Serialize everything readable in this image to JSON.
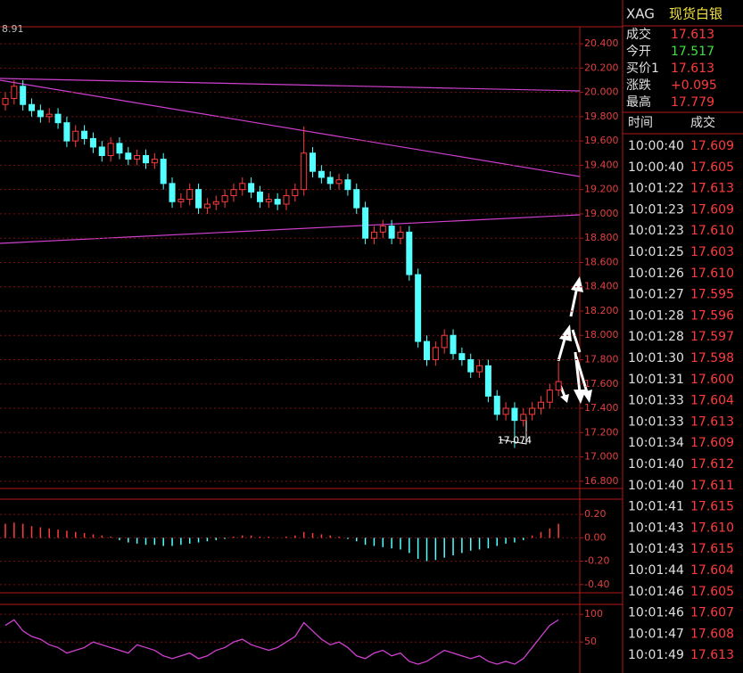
{
  "header": {
    "symbol": "XAG",
    "name": "现货白银"
  },
  "quote": [
    {
      "label": "成交",
      "value": "17.613",
      "color": "#ff3c3c"
    },
    {
      "label": "今开",
      "value": "17.517",
      "color": "#40e040"
    },
    {
      "label": "买价1",
      "value": "17.613",
      "color": "#ff3c3c"
    },
    {
      "label": "涨跌",
      "value": "+0.095",
      "color": "#ff3c3c"
    },
    {
      "label": "最高",
      "value": "17.779",
      "color": "#ff3c3c"
    }
  ],
  "trades": {
    "columns": [
      "时间",
      "成交"
    ],
    "color": "#ff3c3c",
    "rows": [
      [
        "10:00:40",
        "17.609"
      ],
      [
        "10:00:40",
        "17.605"
      ],
      [
        "10:01:22",
        "17.613"
      ],
      [
        "10:01:23",
        "17.609"
      ],
      [
        "10:01:23",
        "17.610"
      ],
      [
        "10:01:25",
        "17.603"
      ],
      [
        "10:01:26",
        "17.610"
      ],
      [
        "10:01:27",
        "17.595"
      ],
      [
        "10:01:28",
        "17.596"
      ],
      [
        "10:01:28",
        "17.597"
      ],
      [
        "10:01:30",
        "17.598"
      ],
      [
        "10:01:31",
        "17.600"
      ],
      [
        "10:01:33",
        "17.604"
      ],
      [
        "10:01:33",
        "17.613"
      ],
      [
        "10:01:34",
        "17.609"
      ],
      [
        "10:01:40",
        "17.612"
      ],
      [
        "10:01:40",
        "17.611"
      ],
      [
        "10:01:41",
        "17.615"
      ],
      [
        "10:01:43",
        "17.610"
      ],
      [
        "10:01:43",
        "17.615"
      ],
      [
        "10:01:44",
        "17.604"
      ],
      [
        "10:01:46",
        "17.605"
      ],
      [
        "10:01:46",
        "17.607"
      ],
      [
        "10:01:47",
        "17.608"
      ],
      [
        "10:01:49",
        "17.613"
      ]
    ]
  },
  "chart_data": [
    {
      "type": "candlestick",
      "corner_label": "8.91",
      "annotation": "17.074",
      "up_color": "#ff3c3c",
      "down_color": "#54ffff",
      "grid": true,
      "ylim": [
        16.74,
        20.54
      ],
      "yticks": [
        {
          "value": 20.4,
          "label": "20.400"
        },
        {
          "value": 20.2,
          "label": "20.200"
        },
        {
          "value": 20.0,
          "label": "20.000"
        },
        {
          "value": 19.8,
          "label": "19.800"
        },
        {
          "value": 19.6,
          "label": "19.600"
        },
        {
          "value": 19.4,
          "label": "19.400"
        },
        {
          "value": 19.2,
          "label": "19.200"
        },
        {
          "value": 19.0,
          "label": "19.000"
        },
        {
          "value": 18.8,
          "label": "18.800"
        },
        {
          "value": 18.6,
          "label": "18.600"
        },
        {
          "value": 18.4,
          "label": "18.400"
        },
        {
          "value": 18.2,
          "label": "18.200"
        },
        {
          "value": 18.0,
          "label": "18.000"
        },
        {
          "value": 17.8,
          "label": "17.800"
        },
        {
          "value": 17.6,
          "label": "17.600"
        },
        {
          "value": 17.4,
          "label": "17.400"
        },
        {
          "value": 17.2,
          "label": "17.200"
        },
        {
          "value": 17.0,
          "label": "17.000"
        },
        {
          "value": 16.8,
          "label": "16.800"
        }
      ],
      "open": [
        19.9,
        19.95,
        20.05,
        19.9,
        19.85,
        19.8,
        19.82,
        19.75,
        19.6,
        19.68,
        19.62,
        19.55,
        19.48,
        19.58,
        19.5,
        19.45,
        19.48,
        19.42,
        19.45,
        19.25,
        19.1,
        19.12,
        19.2,
        19.05,
        19.08,
        19.1,
        19.15,
        19.2,
        19.25,
        19.18,
        19.1,
        19.12,
        19.08,
        19.15,
        19.2,
        19.5,
        19.35,
        19.3,
        19.25,
        19.28,
        19.2,
        19.05,
        18.8,
        18.85,
        18.9,
        18.8,
        18.85,
        18.5,
        17.95,
        17.8,
        17.9,
        18.0,
        17.85,
        17.8,
        17.7,
        17.75,
        17.5,
        17.35,
        17.4,
        17.3,
        17.35,
        17.4,
        17.45,
        17.55
      ],
      "high": [
        20.0,
        20.1,
        20.1,
        19.95,
        19.9,
        19.87,
        19.87,
        19.8,
        19.73,
        19.73,
        19.67,
        19.6,
        19.63,
        19.63,
        19.55,
        19.53,
        19.53,
        19.5,
        19.5,
        19.3,
        19.17,
        19.25,
        19.25,
        19.13,
        19.15,
        19.2,
        19.25,
        19.3,
        19.3,
        19.23,
        19.17,
        19.17,
        19.2,
        19.25,
        19.72,
        19.55,
        19.4,
        19.35,
        19.33,
        19.33,
        19.25,
        19.1,
        18.9,
        18.95,
        18.95,
        18.9,
        18.9,
        18.55,
        18.0,
        17.95,
        18.05,
        18.05,
        17.9,
        17.85,
        17.8,
        17.8,
        17.55,
        17.45,
        17.45,
        17.4,
        17.45,
        17.5,
        17.6,
        17.78
      ],
      "low": [
        19.85,
        19.9,
        19.85,
        19.8,
        19.75,
        19.75,
        19.7,
        19.55,
        19.55,
        19.57,
        19.5,
        19.43,
        19.43,
        19.45,
        19.4,
        19.4,
        19.37,
        19.37,
        19.2,
        19.05,
        19.05,
        19.07,
        19.0,
        19.0,
        19.03,
        19.05,
        19.1,
        19.15,
        19.13,
        19.05,
        19.05,
        19.03,
        19.03,
        19.1,
        19.15,
        19.3,
        19.25,
        19.2,
        19.2,
        19.15,
        19.0,
        18.75,
        18.75,
        18.8,
        18.75,
        18.75,
        18.45,
        17.9,
        17.75,
        17.75,
        17.85,
        17.8,
        17.75,
        17.65,
        17.65,
        17.45,
        17.3,
        17.3,
        17.074,
        17.25,
        17.3,
        17.35,
        17.4,
        17.5
      ],
      "close": [
        19.95,
        20.05,
        19.9,
        19.85,
        19.8,
        19.82,
        19.75,
        19.6,
        19.68,
        19.62,
        19.55,
        19.48,
        19.58,
        19.5,
        19.45,
        19.48,
        19.42,
        19.45,
        19.25,
        19.1,
        19.12,
        19.2,
        19.05,
        19.08,
        19.1,
        19.15,
        19.2,
        19.25,
        19.18,
        19.1,
        19.12,
        19.08,
        19.15,
        19.2,
        19.5,
        19.35,
        19.3,
        19.25,
        19.28,
        19.2,
        19.05,
        18.8,
        18.85,
        18.9,
        18.8,
        18.85,
        18.5,
        17.95,
        17.8,
        17.9,
        18.0,
        17.85,
        17.8,
        17.7,
        17.75,
        17.5,
        17.35,
        17.4,
        17.3,
        17.35,
        17.4,
        17.45,
        17.55,
        17.62
      ]
    },
    {
      "type": "histogram",
      "up_color": "#ff3c3c",
      "down_color": "#54ffff",
      "ylim": [
        -0.47,
        0.33
      ],
      "yticks": [
        {
          "value": 0.2,
          "label": "0.20"
        },
        {
          "value": 0,
          "label": "0.00"
        },
        {
          "value": -0.2,
          "label": "-0.20"
        },
        {
          "value": -0.4,
          "label": "-0.40"
        }
      ],
      "values": [
        0.12,
        0.13,
        0.12,
        0.1,
        0.09,
        0.08,
        0.07,
        0.06,
        0.05,
        0.04,
        0.03,
        0.02,
        0.01,
        -0.02,
        -0.04,
        -0.05,
        -0.06,
        -0.06,
        -0.07,
        -0.07,
        -0.06,
        -0.05,
        -0.04,
        -0.03,
        -0.02,
        -0.01,
        0.01,
        0.02,
        0.02,
        0.01,
        0.01,
        0.0,
        0.01,
        0.02,
        0.05,
        0.04,
        0.03,
        0.02,
        0.01,
        -0.01,
        -0.03,
        -0.06,
        -0.07,
        -0.08,
        -0.09,
        -0.1,
        -0.13,
        -0.18,
        -0.2,
        -0.19,
        -0.17,
        -0.15,
        -0.13,
        -0.11,
        -0.1,
        -0.09,
        -0.07,
        -0.05,
        -0.04,
        -0.02,
        0.02,
        0.05,
        0.08,
        0.12
      ]
    },
    {
      "type": "line",
      "ylim": [
        -6,
        118
      ],
      "yticks": [
        100,
        50
      ],
      "series": [
        {
          "color": "#d040d0",
          "values": [
            80,
            90,
            70,
            60,
            55,
            45,
            40,
            30,
            35,
            40,
            50,
            45,
            40,
            35,
            30,
            45,
            40,
            35,
            25,
            20,
            25,
            30,
            20,
            25,
            35,
            40,
            50,
            55,
            45,
            40,
            35,
            40,
            50,
            60,
            85,
            70,
            55,
            45,
            50,
            40,
            25,
            20,
            30,
            35,
            25,
            30,
            15,
            10,
            15,
            25,
            35,
            30,
            25,
            20,
            25,
            15,
            10,
            15,
            10,
            20,
            40,
            60,
            80,
            90
          ]
        }
      ]
    }
  ]
}
